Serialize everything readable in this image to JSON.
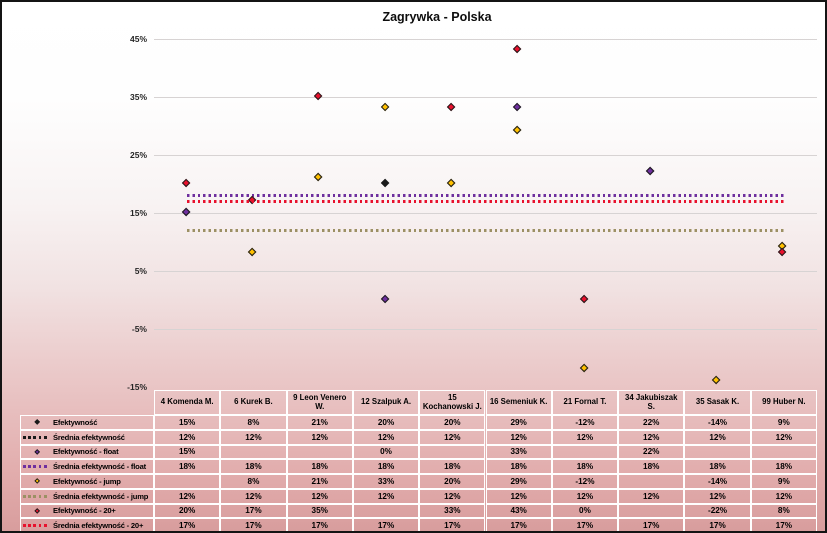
{
  "title": "Zagrywka - Polska",
  "palette": {
    "black": "#1a1a1a",
    "purple": "#6e2f9e",
    "yellow": "#ffc000",
    "red": "#e8112d",
    "olive": "#9c9064",
    "gridline": "#d7d3d3",
    "tick_text": "#262626",
    "cell_border": "#ffffff"
  },
  "chart_data": {
    "type": "scatter",
    "title": "Zagrywka - Polska",
    "categories": [
      "4 Komenda M.",
      "6 Kurek B.",
      "9 Leon Venero W.",
      "12 Szalpuk A.",
      "15 Kochanowski J.",
      "16 Semeniuk K.",
      "21 Fornal T.",
      "34 Jakubiszak S.",
      "35 Sasak K.",
      "99 Huber N."
    ],
    "ylim": [
      -15,
      45
    ],
    "grid": true,
    "yticks": [
      {
        "label": "45%",
        "value": 45
      },
      {
        "label": "35%",
        "value": 35
      },
      {
        "label": "25%",
        "value": 25
      },
      {
        "label": "15%",
        "value": 15
      },
      {
        "label": "5%",
        "value": 5
      },
      {
        "label": "-5%",
        "value": -5
      },
      {
        "label": "-15%",
        "value": -15
      }
    ],
    "series": [
      {
        "key": "efektywnosc",
        "name": "Efektywność",
        "kind": "points",
        "color": "black",
        "values": [
          15,
          8,
          21,
          20,
          20,
          29,
          -12,
          22,
          -14,
          9
        ]
      },
      {
        "key": "srednia-efektywnosc",
        "name": "Średnia efektywność",
        "kind": "avg-line",
        "color": "black",
        "value": 12
      },
      {
        "key": "efektywnosc-float",
        "name": "Efektywność - float",
        "kind": "points",
        "color": "purple",
        "values": [
          15,
          null,
          null,
          0,
          null,
          33,
          null,
          22,
          null,
          null
        ]
      },
      {
        "key": "srednia-efektywnosc-float",
        "name": "Średnia efektywność - float",
        "kind": "avg-line",
        "color": "purple",
        "value": 18
      },
      {
        "key": "efektywnosc-jump",
        "name": "Efektywność - jump",
        "kind": "points",
        "color": "yellow",
        "values": [
          null,
          8,
          21,
          33,
          20,
          29,
          -12,
          null,
          -14,
          9
        ]
      },
      {
        "key": "srednia-efektywnosc-jump",
        "name": "Średnia efektywność - jump",
        "kind": "avg-line",
        "color": "olive",
        "value": 12
      },
      {
        "key": "efektywnosc-20plus",
        "name": "Efektywność - 20+",
        "kind": "points",
        "color": "red",
        "values": [
          20,
          17,
          35,
          null,
          33,
          43,
          0,
          null,
          -22,
          8
        ]
      },
      {
        "key": "srednia-efektywnosc-20plus",
        "name": "Średnia efektywność - 20+",
        "kind": "avg-line",
        "color": "red",
        "value": 17
      }
    ]
  },
  "table": {
    "columns": [
      "4 Komenda M.",
      "6 Kurek B.",
      "9 Leon Venero W.",
      "12 Szalpuk A.",
      "15 Kochanowski J.",
      "16 Semeniuk K.",
      "21 Fornal T.",
      "34 Jakubiszak S.",
      "35 Sasak K.",
      "99 Huber N."
    ],
    "rows": [
      {
        "key": "efektywnosc",
        "label": "Efektywność",
        "marker": "diamond",
        "color": "black",
        "cells": [
          "15%",
          "8%",
          "21%",
          "20%",
          "20%",
          "29%",
          "-12%",
          "22%",
          "-14%",
          "9%"
        ]
      },
      {
        "key": "srednia-efektywnosc",
        "label": "Średnia efektywność",
        "marker": "dots",
        "color": "black",
        "cells": [
          "12%",
          "12%",
          "12%",
          "12%",
          "12%",
          "12%",
          "12%",
          "12%",
          "12%",
          "12%"
        ]
      },
      {
        "key": "efektywnosc-float",
        "label": "Efektywność - float",
        "marker": "diamond",
        "color": "purple",
        "cells": [
          "15%",
          "",
          "",
          "0%",
          "",
          "33%",
          "",
          "22%",
          "",
          ""
        ]
      },
      {
        "key": "srednia-efektywnosc-float",
        "label": "Średnia efektywność - float",
        "marker": "dots",
        "color": "purple",
        "cells": [
          "18%",
          "18%",
          "18%",
          "18%",
          "18%",
          "18%",
          "18%",
          "18%",
          "18%",
          "18%"
        ]
      },
      {
        "key": "efektywnosc-jump",
        "label": "Efektywność - jump",
        "marker": "diamond",
        "color": "yellow",
        "cells": [
          "",
          "8%",
          "21%",
          "33%",
          "20%",
          "29%",
          "-12%",
          "",
          "-14%",
          "9%"
        ]
      },
      {
        "key": "srednia-efektywnosc-jump",
        "label": "Średnia efektywność - jump",
        "marker": "dots",
        "color": "olive",
        "cells": [
          "12%",
          "12%",
          "12%",
          "12%",
          "12%",
          "12%",
          "12%",
          "12%",
          "12%",
          "12%"
        ]
      },
      {
        "key": "efektywnosc-20plus",
        "label": "Efektywność - 20+",
        "marker": "diamond",
        "color": "red",
        "cells": [
          "20%",
          "17%",
          "35%",
          "",
          "33%",
          "43%",
          "0%",
          "",
          "-22%",
          "8%"
        ]
      },
      {
        "key": "srednia-efektywnosc-20plus",
        "label": "Średnia efektywność - 20+",
        "marker": "dots",
        "color": "red",
        "cells": [
          "17%",
          "17%",
          "17%",
          "17%",
          "17%",
          "17%",
          "17%",
          "17%",
          "17%",
          "17%"
        ]
      }
    ]
  }
}
